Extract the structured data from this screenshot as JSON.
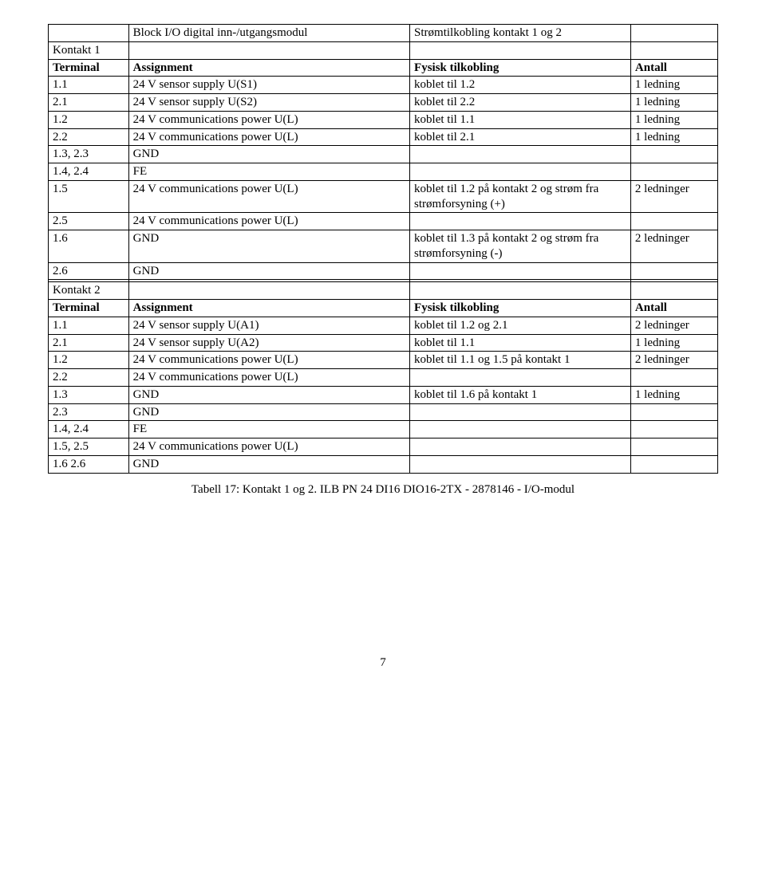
{
  "table1": {
    "header_row": {
      "col2": "Block I/O digital inn-/utgangsmodul",
      "col3": "Strømtilkobling kontakt 1 og 2"
    },
    "section": "Kontakt 1",
    "cols": {
      "c1": "Terminal",
      "c2": "Assignment",
      "c3": "Fysisk tilkobling",
      "c4": "Antall"
    },
    "rows": [
      {
        "c1": "1.1",
        "c2": "24 V sensor supply U(S1)",
        "c3": "koblet til 1.2",
        "c4": "1 ledning"
      },
      {
        "c1": "2.1",
        "c2": "24 V sensor supply U(S2)",
        "c3": "koblet til 2.2",
        "c4": "1 ledning"
      },
      {
        "c1": "1.2",
        "c2": "24 V communications power U(L)",
        "c3": "koblet til 1.1",
        "c4": "1 ledning"
      },
      {
        "c1": "2.2",
        "c2": "24 V communications power U(L)",
        "c3": "koblet til 2.1",
        "c4": "1 ledning"
      },
      {
        "c1": "1.3, 2.3",
        "c2": "GND",
        "c3": "",
        "c4": ""
      },
      {
        "c1": "1.4, 2.4",
        "c2": "FE",
        "c3": "",
        "c4": ""
      },
      {
        "c1": "1.5",
        "c2": "24 V communications power U(L)",
        "c3": "koblet til 1.2 på kontakt 2 og strøm fra strømforsyning (+)",
        "c4": "2 ledninger"
      },
      {
        "c1": "2.5",
        "c2": "24 V communications power U(L)",
        "c3": "",
        "c4": ""
      },
      {
        "c1": "1.6",
        "c2": "GND",
        "c3": "koblet til 1.3 på kontakt 2 og strøm fra strømforsyning (-)",
        "c4": "2 ledninger"
      },
      {
        "c1": "2.6",
        "c2": "GND",
        "c3": "",
        "c4": ""
      }
    ]
  },
  "table2": {
    "section": "Kontakt 2",
    "cols": {
      "c1": "Terminal",
      "c2": "Assignment",
      "c3": "Fysisk tilkobling",
      "c4": "Antall"
    },
    "rows": [
      {
        "c1": "1.1",
        "c2": "24 V sensor supply U(A1)",
        "c3": "koblet til 1.2 og 2.1",
        "c4": "2 ledninger"
      },
      {
        "c1": "2.1",
        "c2": "24 V sensor supply U(A2)",
        "c3": "koblet til 1.1",
        "c4": "1 ledning"
      },
      {
        "c1": "1.2",
        "c2": "24 V communications power U(L)",
        "c3": "koblet til 1.1 og 1.5 på kontakt 1",
        "c4": "2 ledninger"
      },
      {
        "c1": "2.2",
        "c2": "24 V communications power U(L)",
        "c3": "",
        "c4": ""
      },
      {
        "c1": "1.3",
        "c2": "GND",
        "c3": "koblet til 1.6 på kontakt 1",
        "c4": "1 ledning"
      },
      {
        "c1": "2.3",
        "c2": "GND",
        "c3": "",
        "c4": ""
      },
      {
        "c1": "1.4, 2.4",
        "c2": "FE",
        "c3": "",
        "c4": ""
      },
      {
        "c1": "1.5, 2.5",
        "c2": "24 V communications power U(L)",
        "c3": "",
        "c4": ""
      },
      {
        "c1": "1.6 2.6",
        "c2": "GND",
        "c3": "",
        "c4": ""
      }
    ]
  },
  "caption": "Tabell 17: Kontakt 1 og 2. ILB PN 24 DI16 DIO16-2TX - 2878146 - I/O-modul",
  "page_number": "7"
}
